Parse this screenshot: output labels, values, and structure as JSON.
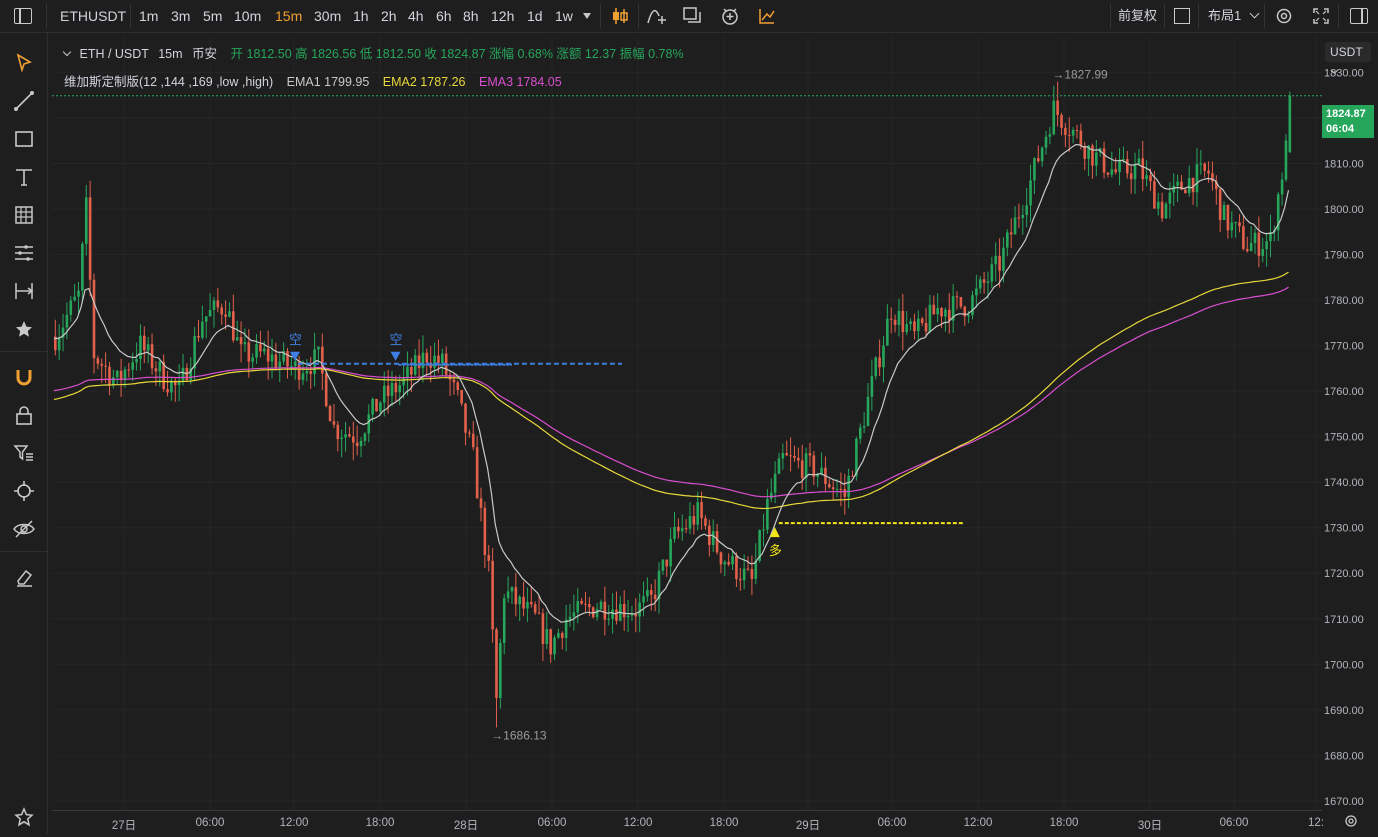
{
  "topbar": {
    "symbol": "ETHUSDT",
    "intervals": [
      "1m",
      "3m",
      "5m",
      "10m",
      "15m",
      "30m",
      "1h",
      "2h",
      "4h",
      "6h",
      "8h",
      "12h",
      "1d",
      "1w"
    ],
    "active_interval": "15m",
    "adjust_label": "前复权",
    "layout_label": "布局1"
  },
  "legend": {
    "pair": "ETH / USDT",
    "interval": "15m",
    "exchange": "币安",
    "ohlc_text": "开 1812.50 高 1826.56 低 1812.50 收 1824.87 涨幅 0.68% 涨额 12.37 振幅 0.78%",
    "indicator_name": "维加斯定制版(12 ,144 ,169 ,low ,high)",
    "ema1": "EMA1 1799.95",
    "ema2": "EMA2 1787.26",
    "ema3": "EMA3 1784.05"
  },
  "price_axis": {
    "currency": "USDT",
    "ticks": [
      "1830.00",
      "1820.00",
      "1810.00",
      "1800.00",
      "1790.00",
      "1780.00",
      "1770.00",
      "1760.00",
      "1750.00",
      "1740.00",
      "1730.00",
      "1720.00",
      "1710.00",
      "1700.00",
      "1690.00",
      "1680.00",
      "1670.00"
    ],
    "last_price": "1824.87",
    "countdown": "06:04"
  },
  "time_axis": {
    "labels": [
      "27日",
      "06:00",
      "12:00",
      "18:00",
      "28日",
      "06:00",
      "12:00",
      "18:00",
      "29日",
      "06:00",
      "12:00",
      "18:00",
      "30日",
      "06:00",
      "12:"
    ]
  },
  "annotations": {
    "high_label": "→1827.99",
    "low_label": "→1686.13",
    "short_label": "空",
    "long_label": "多"
  },
  "colors": {
    "up": "#26a65b",
    "down": "#e3604b",
    "ema1": "#c9c9c9",
    "ema2": "#e8d83a",
    "ema3": "#d94fd0",
    "accent": "#f0a033",
    "short_line": "#3f7fe3",
    "long_line": "#f2e419"
  },
  "chart_data": {
    "type": "candlestick",
    "symbol": "ETHUSDT",
    "interval": "15m",
    "ylim": [
      1668,
      1838
    ],
    "last_close": 1824.87,
    "visible_high": 1827.99,
    "visible_low": 1686.13,
    "x_ticks": [
      "27日",
      "06:00",
      "12:00",
      "18:00",
      "28日",
      "06:00",
      "12:00",
      "18:00",
      "29日",
      "06:00",
      "12:00",
      "18:00",
      "30日",
      "06:00"
    ],
    "price_path": [
      [
        0,
        1772
      ],
      [
        6,
        1781
      ],
      [
        8,
        1800
      ],
      [
        10,
        1768
      ],
      [
        16,
        1762
      ],
      [
        22,
        1770
      ],
      [
        28,
        1763
      ],
      [
        32,
        1760
      ],
      [
        38,
        1776
      ],
      [
        44,
        1779
      ],
      [
        48,
        1768
      ],
      [
        54,
        1768
      ],
      [
        62,
        1765
      ],
      [
        68,
        1767
      ],
      [
        72,
        1752
      ],
      [
        78,
        1750
      ],
      [
        84,
        1758
      ],
      [
        90,
        1762
      ],
      [
        96,
        1768
      ],
      [
        100,
        1766
      ],
      [
        104,
        1758
      ],
      [
        108,
        1745
      ],
      [
        112,
        1720
      ],
      [
        114,
        1692
      ],
      [
        116,
        1716
      ],
      [
        124,
        1710
      ],
      [
        128,
        1704
      ],
      [
        132,
        1710
      ],
      [
        140,
        1713
      ],
      [
        150,
        1712
      ],
      [
        154,
        1714
      ],
      [
        160,
        1728
      ],
      [
        166,
        1733
      ],
      [
        172,
        1724
      ],
      [
        180,
        1718
      ],
      [
        184,
        1735
      ],
      [
        188,
        1745
      ],
      [
        196,
        1743
      ],
      [
        204,
        1737
      ],
      [
        210,
        1758
      ],
      [
        216,
        1778
      ],
      [
        222,
        1772
      ],
      [
        228,
        1778
      ],
      [
        236,
        1779
      ],
      [
        244,
        1788
      ],
      [
        252,
        1806
      ],
      [
        258,
        1822
      ],
      [
        262,
        1818
      ],
      [
        268,
        1812
      ],
      [
        274,
        1808
      ],
      [
        280,
        1809
      ],
      [
        286,
        1800
      ],
      [
        292,
        1806
      ],
      [
        298,
        1808
      ],
      [
        302,
        1798
      ],
      [
        308,
        1792
      ],
      [
        314,
        1793
      ],
      [
        318,
        1813
      ],
      [
        319,
        1825
      ]
    ],
    "ema_lines": [
      {
        "name": "EMA1",
        "period": 12,
        "value": 1799.95,
        "color": "#c9c9c9"
      },
      {
        "name": "EMA2",
        "period": 144,
        "value": 1787.26,
        "color": "#e8d83a"
      },
      {
        "name": "EMA3",
        "period": 169,
        "value": 1784.05,
        "color": "#d94fd0"
      }
    ],
    "signals": [
      {
        "label": "空",
        "index": 62,
        "price": 1766
      },
      {
        "label": "空",
        "index": 88,
        "price": 1766
      },
      {
        "label": "多",
        "index": 186,
        "price": 1731
      }
    ]
  }
}
